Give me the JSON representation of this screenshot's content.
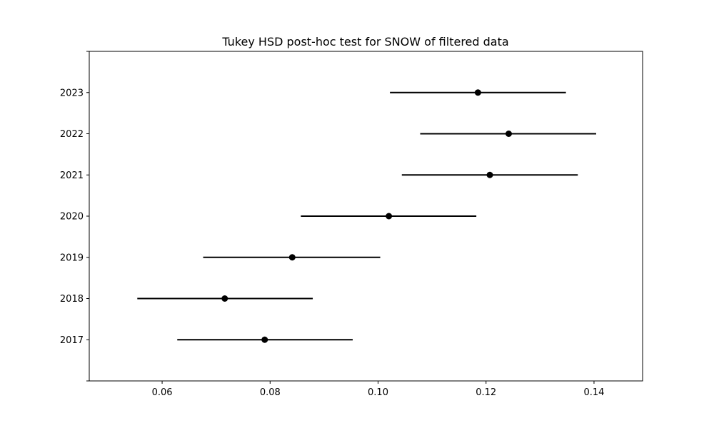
{
  "chart_data": {
    "type": "errorbar",
    "title": "Tukey HSD post-hoc test for SNOW of filtered data",
    "xlabel": "",
    "ylabel": "",
    "xlim": [
      0.0465,
      0.149
    ],
    "xticks": [
      "0.06",
      "0.08",
      "0.10",
      "0.12",
      "0.14"
    ],
    "xtick_values": [
      0.06,
      0.08,
      0.1,
      0.12,
      0.14
    ],
    "groups": [
      {
        "label": "2017",
        "mean": 0.079,
        "lower": 0.0628,
        "upper": 0.0953
      },
      {
        "label": "2018",
        "mean": 0.0716,
        "lower": 0.0554,
        "upper": 0.0879
      },
      {
        "label": "2019",
        "mean": 0.0841,
        "lower": 0.0676,
        "upper": 0.1004
      },
      {
        "label": "2020",
        "mean": 0.102,
        "lower": 0.0857,
        "upper": 0.1182
      },
      {
        "label": "2021",
        "mean": 0.1207,
        "lower": 0.1044,
        "upper": 0.137
      },
      {
        "label": "2022",
        "mean": 0.1242,
        "lower": 0.1078,
        "upper": 0.1404
      },
      {
        "label": "2023",
        "mean": 0.1185,
        "lower": 0.1022,
        "upper": 0.1348
      }
    ],
    "grid": false,
    "colors": {
      "marker": "#000000",
      "line": "#000000",
      "frame": "#000000"
    }
  }
}
